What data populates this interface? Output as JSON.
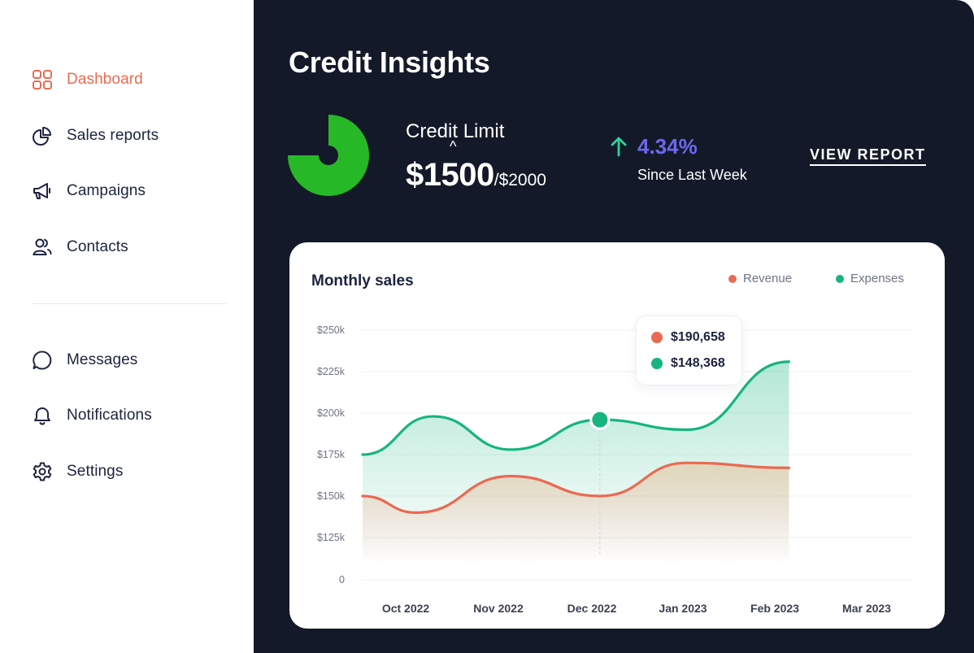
{
  "sidebar": {
    "items": [
      {
        "label": "Dashboard",
        "icon": "grid-icon",
        "active": true
      },
      {
        "label": "Sales reports",
        "icon": "pie-chart-icon"
      },
      {
        "label": "Campaigns",
        "icon": "megaphone-icon"
      },
      {
        "label": "Contacts",
        "icon": "users-icon"
      },
      {
        "label": "Messages",
        "icon": "chat-bubble-icon"
      },
      {
        "label": "Notifications",
        "icon": "bell-icon"
      },
      {
        "label": "Settings",
        "icon": "gear-icon"
      }
    ]
  },
  "header": {
    "title": "Credit Insights"
  },
  "credit": {
    "label": "Credit Limit",
    "caret": "^",
    "used": "$1500",
    "limit": "/$2000",
    "used_fraction": 0.75
  },
  "trend": {
    "percent": "4.34%",
    "subtitle": "Since Last Week",
    "direction": "up"
  },
  "actions": {
    "view_report": "VIEW REPORT"
  },
  "colors": {
    "accent": "#ee6a4f",
    "donut": "#27b827",
    "trend_arrow": "#2fd39a",
    "trend_text": "#6c67f2",
    "revenue": "#ea6a53",
    "expenses": "#16b57f",
    "panel": "#131928"
  },
  "chart_data": {
    "type": "area",
    "title": "Monthly sales",
    "x": [
      "Oct 2022",
      "Nov 2022",
      "Dec 2022",
      "Jan 2023",
      "Feb 2023",
      "Mar 2023"
    ],
    "y_ticks": [
      "0",
      "$125k",
      "$150k",
      "$175k",
      "$200k",
      "$225k",
      "$250k"
    ],
    "grid": true,
    "legend_position": "top-right",
    "series": [
      {
        "name": "Revenue",
        "color": "#ea6a53",
        "points": [
          [
            0.0,
            150000
          ],
          [
            0.58,
            140000
          ],
          [
            1.6,
            162000
          ],
          [
            2.56,
            150000
          ],
          [
            3.5,
            170000
          ],
          [
            4.6,
            167000
          ]
        ]
      },
      {
        "name": "Expenses",
        "color": "#16b57f",
        "points": [
          [
            0.0,
            175000
          ],
          [
            0.76,
            198000
          ],
          [
            1.6,
            178000
          ],
          [
            2.56,
            196000
          ],
          [
            3.5,
            190000
          ],
          [
            4.6,
            231000
          ]
        ]
      }
    ],
    "tooltip": {
      "x_position": 2.56,
      "values": [
        "$190,658",
        "$148,368"
      ]
    }
  }
}
